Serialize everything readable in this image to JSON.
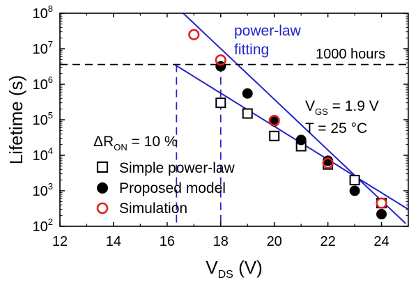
{
  "chart_data": {
    "type": "scatter",
    "title": "",
    "xlabel_main": "V",
    "xlabel_sub": "DS",
    "xlabel_tail": " (V)",
    "ylabel": "Lifetime (s)",
    "xlim": [
      12,
      25
    ],
    "ylim_log10": [
      2,
      8
    ],
    "yscale": "log",
    "x_ticks": [
      "12",
      "14",
      "16",
      "18",
      "20",
      "22",
      "24"
    ],
    "y_tick_exponents": [
      "2",
      "3",
      "4",
      "5",
      "6",
      "7",
      "8"
    ],
    "y_tick_base": "10",
    "series": [
      {
        "name": "Simple power-law",
        "marker": "open-square",
        "color": "#000000",
        "x": [
          18,
          19,
          20,
          21,
          22,
          23,
          24
        ],
        "y": [
          300000,
          150000,
          35000,
          18000,
          5500,
          2000,
          450
        ]
      },
      {
        "name": "Proposed model",
        "marker": "filled-circle",
        "color": "#000000",
        "x": [
          18,
          19,
          20,
          21,
          22,
          23,
          24
        ],
        "y": [
          3200000,
          550000,
          90000,
          27000,
          7000,
          1000,
          220
        ]
      },
      {
        "name": "Simulation",
        "marker": "open-circle",
        "color": "#e02020",
        "x": [
          17,
          18,
          20,
          22,
          24
        ],
        "y": [
          25000000,
          4800000,
          95000,
          6000,
          450
        ]
      }
    ],
    "fit_lines": [
      {
        "from": [
          16.6,
          100000000
        ],
        "to": [
          24.9,
          120
        ]
      },
      {
        "from": [
          16.3,
          3500000
        ],
        "to": [
          25,
          300
        ]
      }
    ],
    "threshold_line": {
      "y": 3600000,
      "label": "1000 hours"
    },
    "vertical_markers": [
      16.35,
      18
    ],
    "annotations": {
      "fit_label_1": "power-law",
      "fit_label_2": "fitting",
      "vgs_main": "V",
      "vgs_sub": "GS",
      "vgs_tail": " = 1.9 V",
      "temp": "T = 25 °C",
      "delta_main": "ΔR",
      "delta_sub": "ON",
      "delta_tail": " = 10 %"
    },
    "colors": {
      "fit": "#2323c8",
      "simulation": "#e02020",
      "axis": "#000000"
    }
  }
}
